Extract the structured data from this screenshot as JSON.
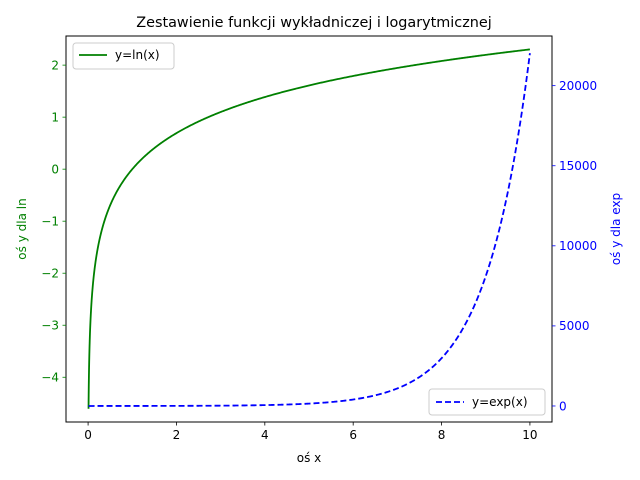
{
  "chart_data": {
    "type": "line",
    "title": "Zestawienie funkcji wykładniczej i logarytmicznej",
    "xlabel": "oś x",
    "ylabel_left": "oś y dla ln",
    "ylabel_right": "oś y dla exp",
    "x_domain": [
      0.01,
      10
    ],
    "xlim": [
      -0.5,
      10.5
    ],
    "ylim_left": [
      -4.86,
      2.56
    ],
    "ylim_right": [
      -1000,
      23100
    ],
    "x_ticks": [
      0,
      2,
      4,
      6,
      8,
      10
    ],
    "x_tick_labels": [
      "0",
      "2",
      "4",
      "6",
      "8",
      "10"
    ],
    "y_left_ticks": [
      -4,
      -3,
      -2,
      -1,
      0,
      1,
      2
    ],
    "y_left_tick_labels": [
      "−4",
      "−3",
      "−2",
      "−1",
      "0",
      "1",
      "2"
    ],
    "y_right_ticks": [
      0,
      5000,
      10000,
      15000,
      20000
    ],
    "y_right_tick_labels": [
      "0",
      "5000",
      "10000",
      "15000",
      "20000"
    ],
    "grid": false,
    "series": [
      {
        "name": "y=ln(x)",
        "function": "ln",
        "axis": "left",
        "color": "#008000",
        "linestyle": "solid",
        "legend_position": "upper-left"
      },
      {
        "name": "y=exp(x)",
        "function": "exp",
        "axis": "right",
        "color": "#0000ff",
        "linestyle": "dashed",
        "legend_position": "lower-right"
      }
    ],
    "left_axis_color": "#008000",
    "right_axis_color": "#0000ff"
  }
}
